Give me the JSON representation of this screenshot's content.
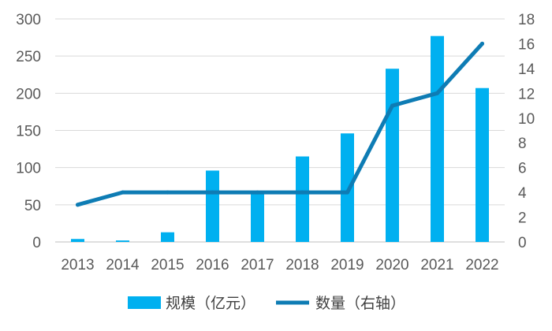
{
  "chart_data": {
    "type": "bar",
    "title": "",
    "categories": [
      "2013",
      "2014",
      "2015",
      "2016",
      "2017",
      "2018",
      "2019",
      "2020",
      "2021",
      "2022"
    ],
    "series": [
      {
        "name": "规模（亿元）",
        "type": "bar",
        "axis": "left",
        "color": "#00B0F0",
        "values": [
          4,
          2,
          13,
          96,
          68,
          115,
          146,
          233,
          277,
          207
        ]
      },
      {
        "name": "数量（右轴）",
        "type": "line",
        "axis": "right",
        "color": "#0E7CB4",
        "values": [
          3,
          4,
          4,
          4,
          4,
          4,
          4,
          11,
          12,
          16
        ]
      }
    ],
    "y_left": {
      "min": 0,
      "max": 300,
      "ticks": [
        "0",
        "50",
        "100",
        "150",
        "200",
        "250",
        "300"
      ]
    },
    "y_right": {
      "min": 0,
      "max": 18,
      "ticks": [
        "0",
        "2",
        "4",
        "6",
        "8",
        "10",
        "12",
        "14",
        "16",
        "18"
      ]
    },
    "grid": true,
    "legend_position": "bottom"
  }
}
